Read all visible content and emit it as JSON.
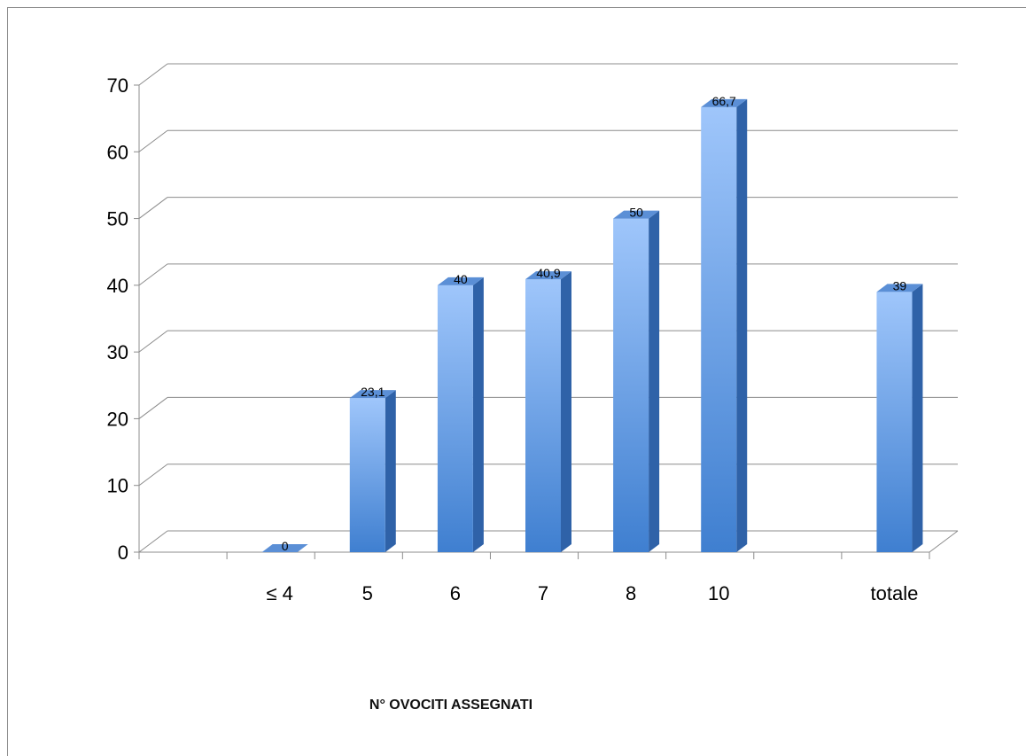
{
  "chart_data": {
    "type": "bar",
    "categories": [
      "",
      "≤ 4",
      "5",
      "6",
      "7",
      "8",
      "10",
      "",
      "totale"
    ],
    "values": [
      null,
      0,
      23.1,
      40,
      40.9,
      50,
      66.7,
      null,
      39
    ],
    "value_labels": [
      "",
      "0",
      "23,1",
      "40",
      "40,9",
      "50",
      "66,7",
      "",
      "39"
    ],
    "title": "",
    "xlabel": "N° OVOCITI ASSEGNATI",
    "ylabel": "",
    "ylim": [
      0,
      70
    ],
    "yticks": [
      0,
      10,
      20,
      30,
      40,
      50,
      60,
      70
    ],
    "grid": true,
    "style": "3d-column",
    "colors": {
      "bar_top": "#9fc6fb",
      "bar_bottom": "#3f7fd0",
      "bar_side": "#2f62a8",
      "bar_cap": "#5b8fd6",
      "grid": "#8c8c8c"
    }
  }
}
